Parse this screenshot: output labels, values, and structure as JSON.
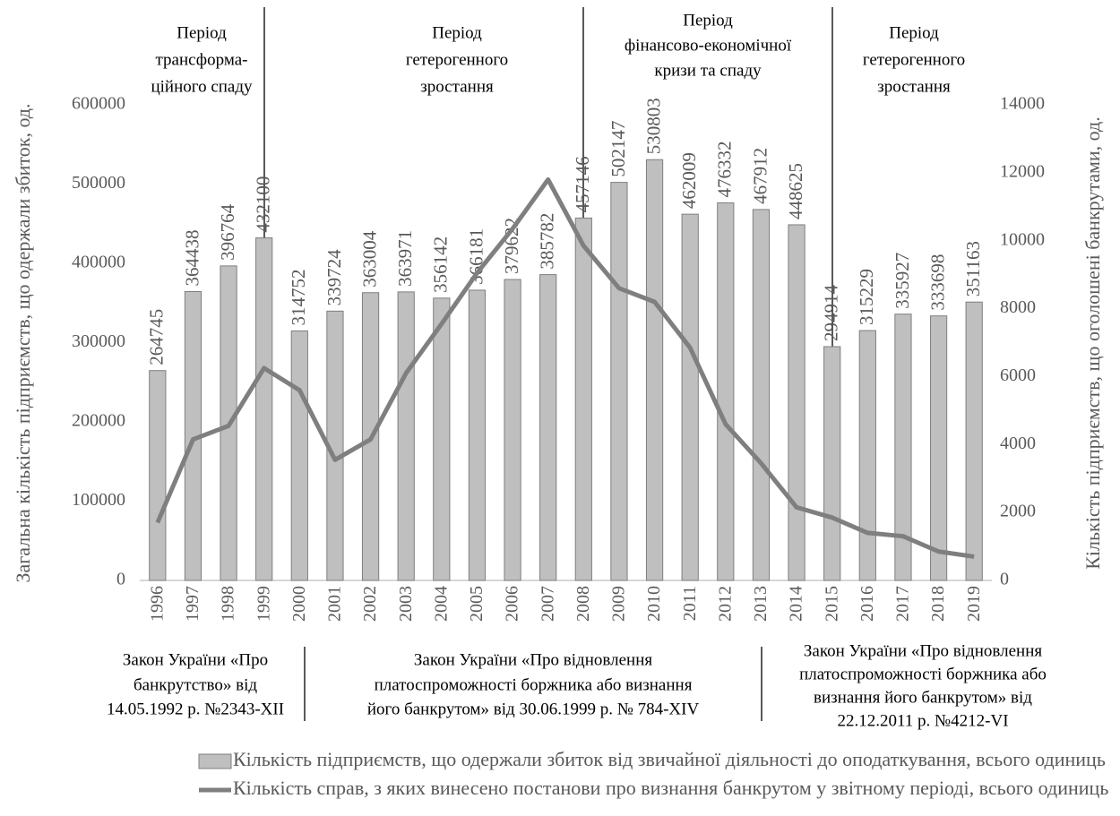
{
  "chart_data": {
    "type": "bar_line",
    "categories": [
      "1996",
      "1997",
      "1998",
      "1999",
      "2000",
      "2001",
      "2002",
      "2003",
      "2004",
      "2005",
      "2006",
      "2007",
      "2008",
      "2009",
      "2010",
      "2011",
      "2012",
      "2013",
      "2014",
      "2015",
      "2016",
      "2017",
      "2018",
      "2019"
    ],
    "series": [
      {
        "name": "Кількість підприємств, що одержали збиток від звичайної діяльності до оподаткування, всього одиниць",
        "type": "bar",
        "color": "#bfbfbf",
        "values": [
          264745,
          364438,
          396764,
          432100,
          314752,
          339724,
          363004,
          363971,
          356142,
          366181,
          379622,
          385782,
          457146,
          502147,
          530803,
          462009,
          476332,
          467912,
          448625,
          294914,
          315229,
          335927,
          333698,
          351163
        ]
      },
      {
        "name": "Кількість справ, з яких винесено постанови про визнання банкрутом у звітному періоді, всього одиниць",
        "type": "line",
        "color": "#7f7f7f",
        "axis": "y2",
        "values": [
          1700,
          4150,
          4550,
          6250,
          5600,
          3550,
          4150,
          6100,
          7550,
          9050,
          10350,
          11800,
          9850,
          8600,
          8200,
          6850,
          4600,
          3450,
          2150,
          1850,
          1400,
          1300,
          850,
          700
        ]
      }
    ],
    "ylabel": "Загальна кількість підприємств, що одержали збиток, од.",
    "y2label": "Кількість підприємств, що оголошені банкрутами, од.",
    "ylim": [
      0,
      600000
    ],
    "yticks": [
      0,
      100000,
      200000,
      300000,
      400000,
      500000,
      600000
    ],
    "y2lim": [
      0,
      14000
    ],
    "y2ticks": [
      0,
      2000,
      4000,
      6000,
      8000,
      10000,
      12000,
      14000
    ],
    "periods": [
      [
        "Період",
        "трансформа-",
        "ційного спаду"
      ],
      [
        "Період",
        "гетерогенного",
        "зростання"
      ],
      [
        "Період",
        "фінансово-економічної",
        "кризи та спаду"
      ],
      [
        "Період",
        "гетерогенного",
        "зростання"
      ]
    ],
    "laws": [
      [
        "Закон України «Про",
        "банкрутство» від",
        "14.05.1992 р. №2343-XII"
      ],
      [
        "Закон України «Про відновлення",
        "платоспроможності боржника або визнання",
        "його банкрутом» від 30.06.1999 р. № 784-XIV"
      ],
      [
        "Закон України «Про відновлення",
        "платоспроможності боржника або",
        "визнання його банкрутом» від",
        "22.12.2011 р. №4212-VI"
      ]
    ]
  }
}
